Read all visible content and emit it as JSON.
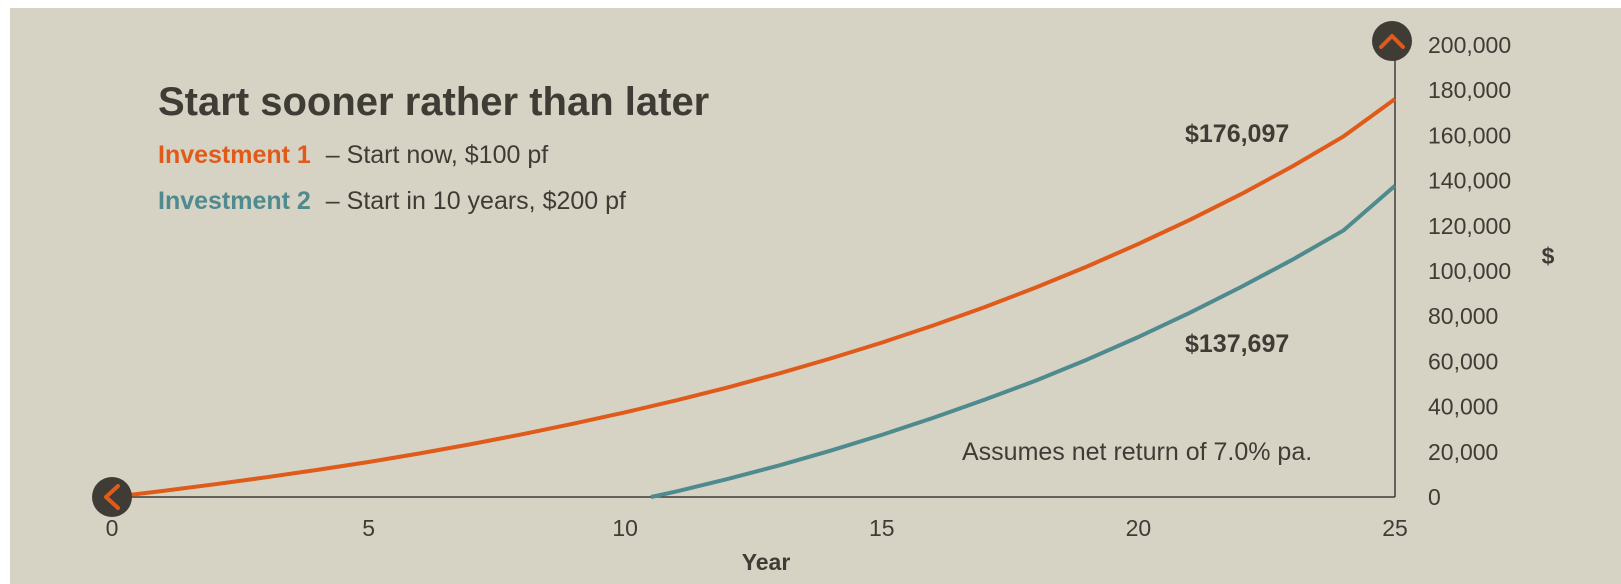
{
  "chart_data": {
    "type": "line",
    "title": "Start sooner rather than later",
    "xlabel": "Year",
    "ylabel": "$",
    "xlim": [
      0,
      25
    ],
    "ylim": [
      0,
      200000
    ],
    "x_ticks": [
      "0",
      "5",
      "10",
      "15",
      "20",
      "25"
    ],
    "y_ticks": [
      "0",
      "20,000",
      "40,000",
      "60,000",
      "80,000",
      "100,000",
      "120,000",
      "140,000",
      "160,000",
      "180,000",
      "200,000"
    ],
    "series": [
      {
        "name": "Investment 1",
        "description": "– Start now, $100 pf",
        "color": "#e05a1a",
        "x": [
          0,
          1,
          2,
          3,
          4,
          5,
          6,
          7,
          8,
          9,
          10,
          11,
          12,
          13,
          14,
          15,
          16,
          17,
          18,
          19,
          20,
          21,
          22,
          23,
          24,
          25
        ],
        "y": [
          0,
          2700,
          5600,
          8700,
          12000,
          15500,
          19300,
          23400,
          27800,
          32500,
          37500,
          42800,
          48500,
          54700,
          61300,
          68300,
          75900,
          84000,
          92700,
          102000,
          112000,
          122600,
          134000,
          146300,
          159600,
          176097
        ],
        "end_label": "$176,097"
      },
      {
        "name": "Investment 2",
        "description": "– Start in 10 years, $200 pf",
        "color": "#4e8a8e",
        "x": [
          10.5,
          11,
          12,
          13,
          14,
          15,
          16,
          17,
          18,
          19,
          20,
          21,
          22,
          23,
          24,
          25
        ],
        "y": [
          0,
          2500,
          8000,
          14000,
          20500,
          27500,
          35000,
          43000,
          51500,
          60800,
          70800,
          81500,
          92900,
          105000,
          118000,
          137697
        ],
        "end_label": "$137,697"
      }
    ],
    "annotation": "Assumes net return of 7.0% pa."
  },
  "controls": {
    "left_icon": "chevron-left-icon",
    "up_icon": "chevron-up-icon",
    "accent": "#e05a1a",
    "circle": "#3f3c36"
  }
}
